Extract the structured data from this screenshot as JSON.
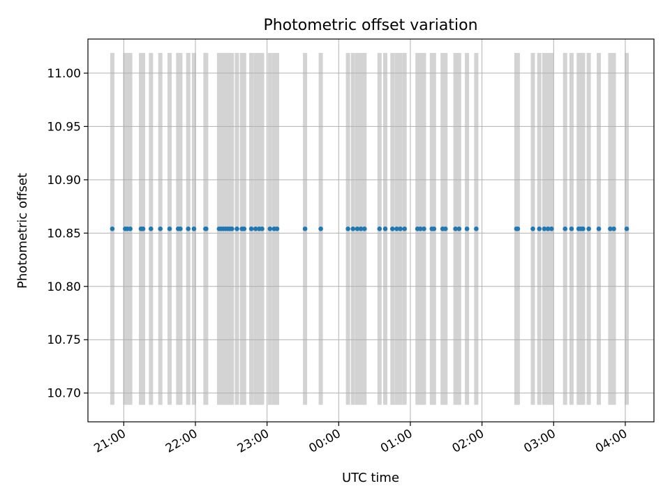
{
  "chart_data": {
    "type": "scatter",
    "title": "Photometric offset variation",
    "xlabel": "UTC time",
    "ylabel": "Photometric offset",
    "x_range_hours": [
      20.5,
      28.4
    ],
    "ylim": [
      10.673,
      11.032
    ],
    "x_ticks": [
      {
        "h": 21,
        "label": "21:00"
      },
      {
        "h": 22,
        "label": "22:00"
      },
      {
        "h": 23,
        "label": "23:00"
      },
      {
        "h": 24,
        "label": "00:00"
      },
      {
        "h": 25,
        "label": "01:00"
      },
      {
        "h": 26,
        "label": "02:00"
      },
      {
        "h": 27,
        "label": "03:00"
      },
      {
        "h": 28,
        "label": "04:00"
      }
    ],
    "y_ticks": [
      {
        "v": 10.7,
        "label": "10.70"
      },
      {
        "v": 10.75,
        "label": "10.75"
      },
      {
        "v": 10.8,
        "label": "10.80"
      },
      {
        "v": 10.85,
        "label": "10.85"
      },
      {
        "v": 10.9,
        "label": "10.90"
      },
      {
        "v": 10.95,
        "label": "10.95"
      },
      {
        "v": 11.0,
        "label": "11.00"
      }
    ],
    "grid": true,
    "offset_value": 10.854,
    "bar_range": [
      10.689,
      11.019
    ],
    "times_hours": [
      20.84,
      21.02,
      21.05,
      21.09,
      21.24,
      21.27,
      21.38,
      21.51,
      21.64,
      21.76,
      21.79,
      21.9,
      21.98,
      22.14,
      22.15,
      22.33,
      22.36,
      22.39,
      22.42,
      22.45,
      22.48,
      22.51,
      22.58,
      22.65,
      22.68,
      22.78,
      22.84,
      22.89,
      22.93,
      23.04,
      23.1,
      23.14,
      23.53,
      23.75,
      24.13,
      24.2,
      24.26,
      24.31,
      24.36,
      24.57,
      24.65,
      24.75,
      24.81,
      24.86,
      24.92,
      25.1,
      25.14,
      25.19,
      25.3,
      25.33,
      25.45,
      25.49,
      25.63,
      25.68,
      25.79,
      25.92,
      26.48,
      26.5,
      26.71,
      26.8,
      26.87,
      26.92,
      26.97,
      27.16,
      27.25,
      27.35,
      27.38,
      27.41,
      27.49,
      27.63,
      27.79,
      27.84,
      28.02
    ],
    "series_color": "#1f77b4",
    "band_color": "#d3d3d3",
    "grid_color": "#b0b0b0"
  }
}
